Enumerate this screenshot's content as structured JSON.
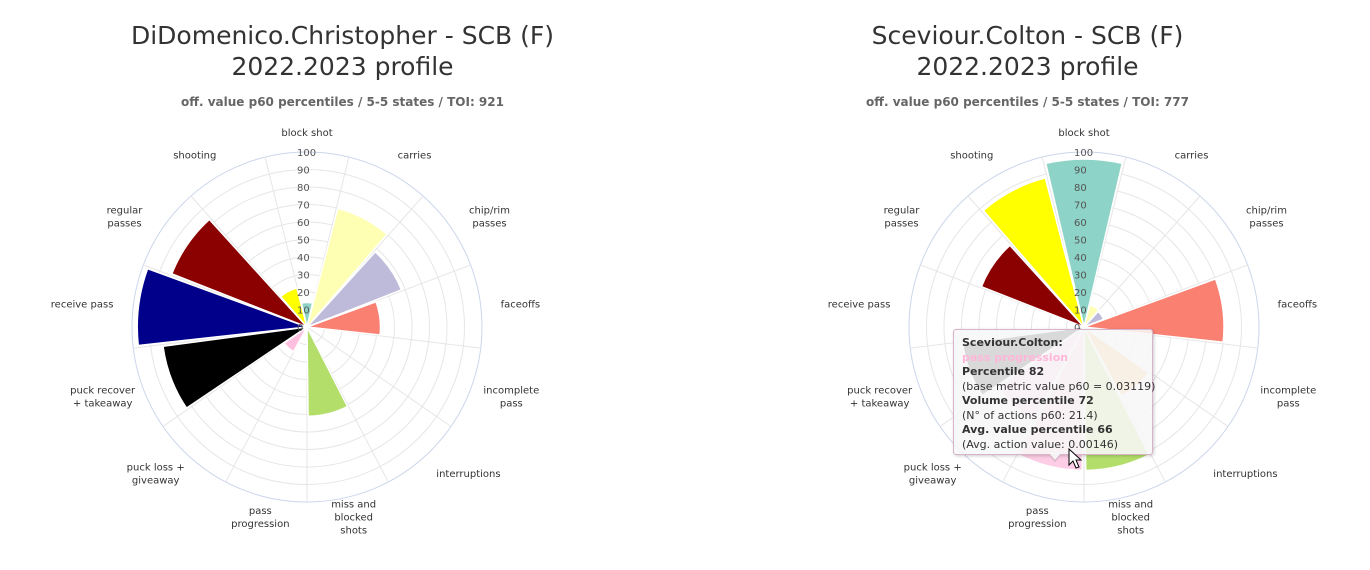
{
  "charts": [
    {
      "title_line1": "DiDomenico.Christopher - SCB (F)",
      "title_line2": "2022.2023 profile",
      "subtitle": "off. value p60 percentiles / 5-5 states / TOI: 921"
    },
    {
      "title_line1": "Sceviour.Colton - SCB (F)",
      "title_line2": "2022.2023 profile",
      "subtitle": "off. value p60 percentiles / 5-5 states / TOI: 777"
    }
  ],
  "chart_data": [
    {
      "type": "polar-bar",
      "categories": [
        "block shot",
        "carries",
        "chip/rim passes",
        "faceoffs",
        "incomplete pass",
        "interruptions",
        "miss and blocked shots",
        "pass progression",
        "puck loss + giveaway",
        "puck recover + takeaway",
        "receive pass",
        "regular passes",
        "shooting"
      ],
      "values": [
        14,
        70,
        58,
        42,
        0,
        0,
        51,
        0,
        16,
        83,
        97,
        83,
        23
      ],
      "colors": [
        "#7cc9bb",
        "#ffffa0",
        "#bcbade",
        "#fa8072",
        "#80b1d3",
        "#ffe4b5",
        "#b3de69",
        "#fccde5",
        "#ffc0cb",
        "#000000",
        "#00008b",
        "#8b0000",
        "#ffff00"
      ],
      "bar_colors_actual": [
        "#8dd3c7",
        "#ffffb3",
        "#bebada",
        "#fa8072",
        "#80b1d3",
        "#fdb462",
        "#b3de69",
        "#fccde5",
        "#ffc0e0",
        "#000000",
        "#00008b",
        "#8b0000",
        "#ffff00"
      ],
      "r_ticks": [
        "0",
        "10",
        "20",
        "30",
        "40",
        "50",
        "60",
        "70",
        "80",
        "90",
        "100"
      ],
      "rlim": [
        0,
        100
      ]
    },
    {
      "type": "polar-bar",
      "categories": [
        "block shot",
        "carries",
        "chip/rim passes",
        "faceoffs",
        "incomplete pass",
        "interruptions",
        "miss and blocked shots",
        "pass progression",
        "puck loss + giveaway",
        "puck recover + takeaway",
        "receive pass",
        "regular passes",
        "shooting"
      ],
      "values": [
        96,
        13,
        12,
        80,
        0,
        45,
        82,
        82,
        60,
        70,
        0,
        63,
        88
      ],
      "bar_colors_actual": [
        "#8dd3c7",
        "#ffffb3",
        "#bebada",
        "#fa8072",
        "#80b1d3",
        "#fdb462",
        "#b3de69",
        "#fccde5",
        "#ffc0e0",
        "#000000",
        "#00008b",
        "#8b0000",
        "#ffff00"
      ],
      "r_ticks": [
        "0",
        "10",
        "20",
        "30",
        "40",
        "50",
        "60",
        "70",
        "80",
        "90",
        "100"
      ],
      "rlim": [
        0,
        100
      ]
    }
  ],
  "tooltip": {
    "player": "Sceviour.Colton:",
    "metric": "pass progression",
    "percentile": "Percentile 82",
    "base": "(base metric value p60 = 0.03119)",
    "volume": "Volume percentile 72",
    "actions": "(N° of actions p60: 21.4)",
    "avg": "Avg. value percentile 66",
    "avg_value": "(Avg. action value: 0.00146)"
  }
}
